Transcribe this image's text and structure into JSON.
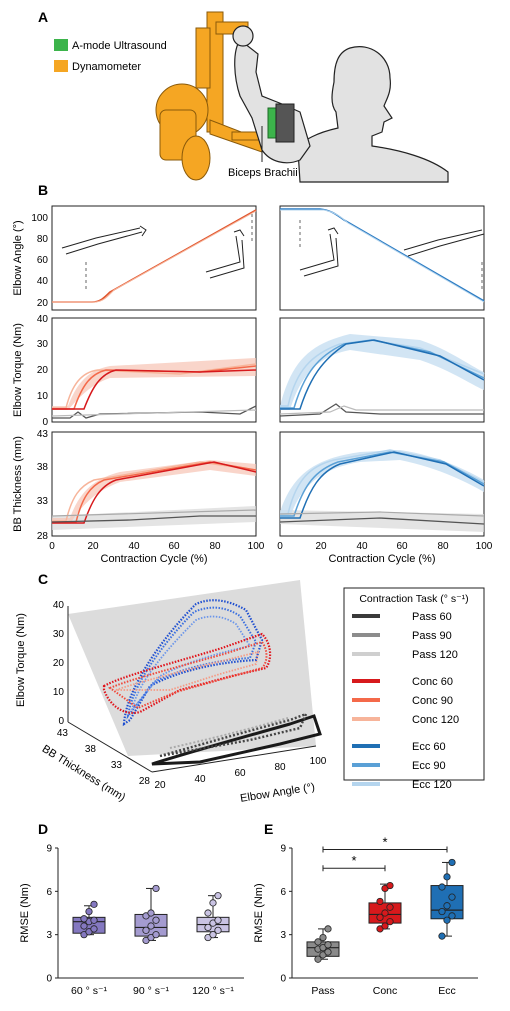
{
  "panels": {
    "a": "A",
    "b": "B",
    "c": "C",
    "d": "D",
    "e": "E"
  },
  "panel_a": {
    "legend": [
      {
        "label": "A-mode Ultrasound",
        "color": "#3cb44b"
      },
      {
        "label": "Dynamometer",
        "color": "#f5a623"
      }
    ],
    "annotation": "Biceps Brachii"
  },
  "panel_b": {
    "xlabel": "Contraction Cycle (%)",
    "xticks": [
      "0",
      "20",
      "40",
      "60",
      "80",
      "100"
    ],
    "rows": [
      {
        "ylabel": "Elbow Angle (°)",
        "yticks": [
          "20",
          "40",
          "60",
          "80",
          "100"
        ]
      },
      {
        "ylabel": "Elbow Torque (Nm)",
        "yticks": [
          "0",
          "10",
          "20",
          "30",
          "40"
        ]
      },
      {
        "ylabel": "BB Thickness (mm)",
        "yticks": [
          "28",
          "33",
          "38",
          "43"
        ]
      }
    ]
  },
  "panel_c": {
    "zlabel": "Elbow Torque (Nm)",
    "ylabel": "BB Thickness (mm)",
    "xlabel": "Elbow Angle (°)",
    "zticks": [
      "0",
      "10",
      "20",
      "30",
      "40"
    ],
    "yticks": [
      "43",
      "38",
      "33",
      "28"
    ],
    "xticks": [
      "20",
      "40",
      "60",
      "80",
      "100"
    ],
    "legend_title": "Contraction Task (° s⁻¹)",
    "legend": [
      {
        "label": "Pass 60",
        "color": "#3a3a3a"
      },
      {
        "label": "Pass 90",
        "color": "#8c8c8c"
      },
      {
        "label": "Pass 120",
        "color": "#cfcfcf"
      },
      {
        "label": "Conc 60",
        "color": "#d7191c"
      },
      {
        "label": "Conc 90",
        "color": "#f4694a"
      },
      {
        "label": "Conc 120",
        "color": "#f7b49a"
      },
      {
        "label": "Ecc 60",
        "color": "#1f6fb4"
      },
      {
        "label": "Ecc 90",
        "color": "#5aa0d6"
      },
      {
        "label": "Ecc 120",
        "color": "#b5d5ee"
      }
    ]
  },
  "chart_data": [
    {
      "type": "box",
      "panel": "D",
      "ylabel": "RMSE (Nm)",
      "ylim": [
        0,
        9
      ],
      "yticks": [
        "0",
        "3",
        "6",
        "9"
      ],
      "categories": [
        "60 ° s⁻¹",
        "90 ° s⁻¹",
        "120 ° s⁻¹"
      ],
      "colors": [
        "#8478c0",
        "#a49bd0",
        "#c9c3e3"
      ],
      "boxes": [
        {
          "whisker_low": 3.0,
          "q1": 3.1,
          "median": 3.9,
          "q3": 4.2,
          "whisker_high": 5.0,
          "points": [
            3.0,
            3.2,
            3.4,
            3.6,
            3.9,
            4.0,
            4.1,
            4.6,
            5.1
          ]
        },
        {
          "whisker_low": 2.6,
          "q1": 2.9,
          "median": 3.5,
          "q3": 4.4,
          "whisker_high": 6.2,
          "points": [
            2.6,
            2.8,
            3.0,
            3.3,
            3.6,
            4.0,
            4.3,
            4.5,
            6.2
          ]
        },
        {
          "whisker_low": 2.8,
          "q1": 3.2,
          "median": 3.7,
          "q3": 4.2,
          "whisker_high": 5.7,
          "points": [
            2.8,
            3.0,
            3.3,
            3.5,
            3.8,
            4.0,
            4.5,
            5.2,
            5.7
          ]
        }
      ]
    },
    {
      "type": "box",
      "panel": "E",
      "ylabel": "RMSE (Nm)",
      "ylim": [
        0,
        9
      ],
      "yticks": [
        "0",
        "3",
        "6",
        "9"
      ],
      "categories": [
        "Pass",
        "Conc",
        "Ecc"
      ],
      "colors": [
        "#8a8a8a",
        "#d7191c",
        "#1f6fb4"
      ],
      "significance": [
        {
          "from": 0,
          "to": 1,
          "label": "*"
        },
        {
          "from": 0,
          "to": 2,
          "label": "*"
        }
      ],
      "boxes": [
        {
          "whisker_low": 1.3,
          "q1": 1.5,
          "median": 2.1,
          "q3": 2.5,
          "whisker_high": 3.4,
          "points": [
            1.3,
            1.6,
            1.8,
            2.0,
            2.1,
            2.3,
            2.5,
            2.8,
            3.4
          ]
        },
        {
          "whisker_low": 3.4,
          "q1": 3.8,
          "median": 4.4,
          "q3": 5.2,
          "whisker_high": 6.5,
          "points": [
            3.4,
            3.6,
            3.9,
            4.2,
            4.5,
            4.9,
            5.3,
            6.2,
            6.4
          ]
        },
        {
          "whisker_low": 2.9,
          "q1": 4.1,
          "median": 4.7,
          "q3": 6.4,
          "whisker_high": 8.0,
          "points": [
            2.9,
            4.0,
            4.3,
            4.6,
            5.0,
            5.6,
            6.3,
            7.0,
            8.0
          ]
        }
      ]
    }
  ]
}
